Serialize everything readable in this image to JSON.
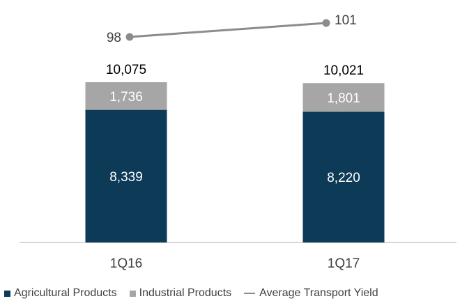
{
  "chart_data": {
    "type": "bar",
    "stacked": true,
    "categories": [
      "1Q16",
      "1Q17"
    ],
    "series": [
      {
        "name": "Agricultural Products",
        "values": [
          8339,
          8220
        ],
        "labels": [
          "8,339",
          "8,220"
        ],
        "color": "#0d3a57"
      },
      {
        "name": "Industrial Products",
        "values": [
          1736,
          1801
        ],
        "labels": [
          "1,736",
          "1,801"
        ],
        "color": "#a6a6a6"
      }
    ],
    "totals": {
      "values": [
        10075,
        10021
      ],
      "labels": [
        "10,075",
        "10,021"
      ]
    },
    "line": {
      "name": "Average Transport Yield",
      "values": [
        98,
        101
      ],
      "labels": [
        "98",
        "101"
      ],
      "color": "#8c8c8c"
    },
    "ylim": [
      0,
      10075
    ],
    "grid": false,
    "legend_position": "bottom"
  },
  "legend": {
    "items": [
      {
        "label": "Agricultural Products",
        "kind": "square",
        "color": "#0d3a57"
      },
      {
        "label": "Industrial Products",
        "kind": "square",
        "color": "#a6a6a6"
      },
      {
        "label": "Average Transport Yield",
        "kind": "line",
        "color": "#8c8c8c"
      }
    ]
  }
}
